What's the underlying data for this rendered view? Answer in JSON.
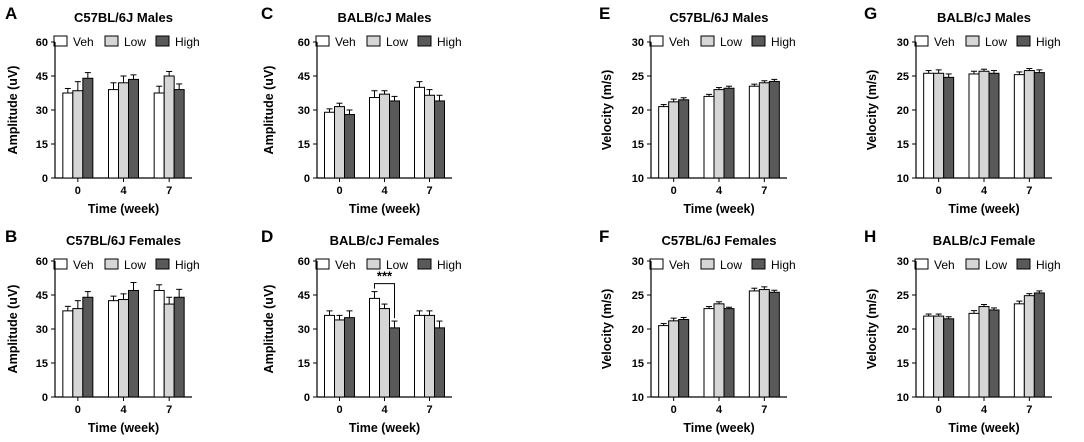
{
  "colors": {
    "Veh": "#ffffff",
    "Low": "#d6d6d6",
    "High": "#595959",
    "stroke": "#000000"
  },
  "chart_data": [
    {
      "letter": "A",
      "type": "bar",
      "title": "C57BL/6J Males",
      "xlabel": "Time (week)",
      "ylabel": "Amplitude (uV)",
      "categories": [
        "0",
        "4",
        "7"
      ],
      "ylim": [
        0,
        60
      ],
      "yticks": [
        0,
        15,
        30,
        45,
        60
      ],
      "series": [
        {
          "name": "Veh",
          "values": [
            37.5,
            39,
            37.5
          ],
          "errors": [
            2,
            3,
            3
          ]
        },
        {
          "name": "Low",
          "values": [
            38.5,
            42,
            45
          ],
          "errors": [
            4,
            3,
            2
          ]
        },
        {
          "name": "High",
          "values": [
            44,
            43.5,
            39
          ],
          "errors": [
            2.5,
            2,
            2.5
          ]
        }
      ]
    },
    {
      "letter": "B",
      "type": "bar",
      "title": "C57BL/6J Females",
      "xlabel": "Time (week)",
      "ylabel": "Amplitude (uV)",
      "categories": [
        "0",
        "4",
        "7"
      ],
      "ylim": [
        0,
        60
      ],
      "yticks": [
        0,
        15,
        30,
        45,
        60
      ],
      "series": [
        {
          "name": "Veh",
          "values": [
            38,
            42.5,
            47
          ],
          "errors": [
            2,
            2,
            2.5
          ]
        },
        {
          "name": "Low",
          "values": [
            39,
            43,
            41
          ],
          "errors": [
            3.5,
            2.5,
            3
          ]
        },
        {
          "name": "High",
          "values": [
            44,
            47,
            44
          ],
          "errors": [
            2.5,
            3.5,
            3.5
          ]
        }
      ]
    },
    {
      "letter": "C",
      "type": "bar",
      "title": "BALB/cJ Males",
      "xlabel": "Time (week)",
      "ylabel": "Amplitude (uV)",
      "categories": [
        "0",
        "4",
        "7"
      ],
      "ylim": [
        0,
        60
      ],
      "yticks": [
        0,
        15,
        30,
        45,
        60
      ],
      "series": [
        {
          "name": "Veh",
          "values": [
            29,
            35.5,
            40
          ],
          "errors": [
            1.5,
            3,
            2.5
          ]
        },
        {
          "name": "Low",
          "values": [
            31.5,
            37,
            36.5
          ],
          "errors": [
            1.5,
            1.5,
            2.5
          ]
        },
        {
          "name": "High",
          "values": [
            28,
            34,
            34
          ],
          "errors": [
            2,
            2,
            2.5
          ]
        }
      ]
    },
    {
      "letter": "D",
      "type": "bar",
      "title": "BALB/cJ Females",
      "xlabel": "Time (week)",
      "ylabel": "Amplitude (uV)",
      "categories": [
        "0",
        "4",
        "7"
      ],
      "ylim": [
        0,
        60
      ],
      "yticks": [
        0,
        15,
        30,
        45,
        60
      ],
      "series": [
        {
          "name": "Veh",
          "values": [
            36,
            43.5,
            36
          ],
          "errors": [
            2,
            3,
            2
          ]
        },
        {
          "name": "Low",
          "values": [
            34,
            39,
            36
          ],
          "errors": [
            2,
            2,
            2
          ]
        },
        {
          "name": "High",
          "values": [
            35,
            30.5,
            30.5
          ],
          "errors": [
            3,
            3,
            3
          ]
        }
      ],
      "annotation": {
        "text": "***",
        "category": "4",
        "from": "Veh",
        "to": "High",
        "y": 50
      }
    },
    {
      "letter": "E",
      "type": "bar",
      "title": "C57BL/6J Males",
      "xlabel": "Time (week)",
      "ylabel": "Velocity (m/s)",
      "categories": [
        "0",
        "4",
        "7"
      ],
      "ylim": [
        10,
        30
      ],
      "yticks": [
        10,
        15,
        20,
        25,
        30
      ],
      "series": [
        {
          "name": "Veh",
          "values": [
            20.5,
            22,
            23.5
          ],
          "errors": [
            0.3,
            0.3,
            0.3
          ]
        },
        {
          "name": "Low",
          "values": [
            21.2,
            23,
            24
          ],
          "errors": [
            0.4,
            0.3,
            0.3
          ]
        },
        {
          "name": "High",
          "values": [
            21.5,
            23.2,
            24.2
          ],
          "errors": [
            0.3,
            0.3,
            0.3
          ]
        }
      ]
    },
    {
      "letter": "F",
      "type": "bar",
      "title": "C57BL/6J Females",
      "xlabel": "Time (week)",
      "ylabel": "Velocity (m/s)",
      "categories": [
        "0",
        "4",
        "7"
      ],
      "ylim": [
        10,
        30
      ],
      "yticks": [
        10,
        15,
        20,
        25,
        30
      ],
      "series": [
        {
          "name": "Veh",
          "values": [
            20.5,
            23,
            25.6
          ],
          "errors": [
            0.3,
            0.3,
            0.4
          ]
        },
        {
          "name": "Low",
          "values": [
            21.2,
            23.7,
            25.8
          ],
          "errors": [
            0.4,
            0.3,
            0.4
          ]
        },
        {
          "name": "High",
          "values": [
            21.4,
            23,
            25.4
          ],
          "errors": [
            0.3,
            0.2,
            0.3
          ]
        }
      ]
    },
    {
      "letter": "G",
      "type": "bar",
      "title": "BALB/cJ Males",
      "xlabel": "Time (week)",
      "ylabel": "Velocity (m/s)",
      "categories": [
        "0",
        "4",
        "7"
      ],
      "ylim": [
        10,
        30
      ],
      "yticks": [
        10,
        15,
        20,
        25,
        30
      ],
      "series": [
        {
          "name": "Veh",
          "values": [
            25.4,
            25.3,
            25.2
          ],
          "errors": [
            0.4,
            0.4,
            0.4
          ]
        },
        {
          "name": "Low",
          "values": [
            25.4,
            25.7,
            25.8
          ],
          "errors": [
            0.5,
            0.3,
            0.3
          ]
        },
        {
          "name": "High",
          "values": [
            24.8,
            25.4,
            25.5
          ],
          "errors": [
            0.5,
            0.4,
            0.4
          ]
        }
      ]
    },
    {
      "letter": "H",
      "type": "bar",
      "title": "BALB/cJ Female",
      "xlabel": "Time (week)",
      "ylabel": "Velocity (m/s)",
      "categories": [
        "0",
        "4",
        "7"
      ],
      "ylim": [
        10,
        30
      ],
      "yticks": [
        10,
        15,
        20,
        25,
        30
      ],
      "series": [
        {
          "name": "Veh",
          "values": [
            21.9,
            22.3,
            23.7
          ],
          "errors": [
            0.3,
            0.4,
            0.4
          ]
        },
        {
          "name": "Low",
          "values": [
            21.9,
            23.3,
            24.9
          ],
          "errors": [
            0.3,
            0.3,
            0.3
          ]
        },
        {
          "name": "High",
          "values": [
            21.5,
            22.8,
            25.3
          ],
          "errors": [
            0.3,
            0.3,
            0.3
          ]
        }
      ]
    }
  ]
}
